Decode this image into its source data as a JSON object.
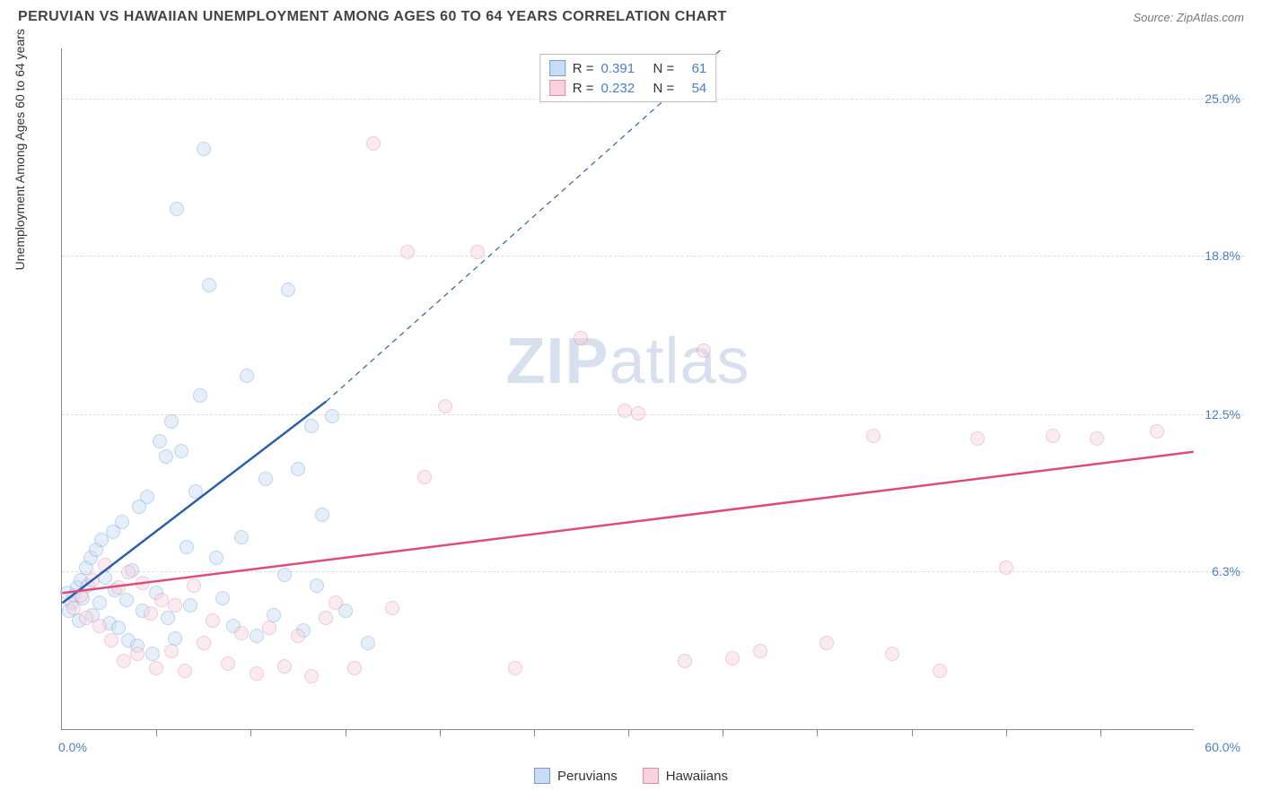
{
  "header": {
    "title": "PERUVIAN VS HAWAIIAN UNEMPLOYMENT AMONG AGES 60 TO 64 YEARS CORRELATION CHART",
    "source_prefix": "Source: ",
    "source": "ZipAtlas.com"
  },
  "chart": {
    "type": "scatter",
    "ylabel": "Unemployment Among Ages 60 to 64 years",
    "xlim": [
      0,
      60
    ],
    "ylim": [
      0,
      27
    ],
    "xticks_minor": [
      5,
      10,
      15,
      20,
      25,
      30,
      35,
      40,
      45,
      50,
      55
    ],
    "xlabels": [
      {
        "v": 0,
        "t": "0.0%"
      },
      {
        "v": 60,
        "t": "60.0%"
      }
    ],
    "ygrid": [
      {
        "v": 6.3,
        "t": "6.3%"
      },
      {
        "v": 12.5,
        "t": "12.5%"
      },
      {
        "v": 18.8,
        "t": "18.8%"
      },
      {
        "v": 25.0,
        "t": "25.0%"
      }
    ],
    "tick_color_blue": "#4a7ec9",
    "background": "#ffffff",
    "grid_color": "#dddddd",
    "axis_color": "#888888",
    "marker_radius": 8,
    "marker_opacity": 0.45,
    "watermark_zip": "ZIP",
    "watermark_rest": "atlas",
    "legend_top": [
      {
        "swatch_fill": "#c8ddf3",
        "swatch_stroke": "#6d9fda",
        "r_label": "R =",
        "r": "0.391",
        "n_label": "N =",
        "n": "61"
      },
      {
        "swatch_fill": "#f6d3de",
        "swatch_stroke": "#e28aa4",
        "r_label": "R =",
        "r": "0.232",
        "n_label": "N =",
        "n": "54"
      }
    ],
    "legend_bottom": [
      {
        "label": "Peruvians",
        "fill": "#c8ddf3",
        "stroke": "#6d9fda"
      },
      {
        "label": "Hawaiians",
        "fill": "#f6d3de",
        "stroke": "#e28aa4"
      }
    ],
    "series": [
      {
        "name": "Peruvians",
        "fill": "#c8ddf3",
        "stroke": "#6d9fda",
        "trend": {
          "x1": 0,
          "y1": 5.0,
          "x2": 14,
          "y2": 13.0,
          "dash_to_x": 35,
          "dash_to_y": 27,
          "color": "#2c5fa6",
          "width": 2.5
        },
        "points": [
          [
            0.5,
            5.0
          ],
          [
            0.6,
            5.3
          ],
          [
            0.8,
            5.6
          ],
          [
            1.0,
            5.9
          ],
          [
            1.1,
            5.2
          ],
          [
            1.3,
            6.4
          ],
          [
            1.4,
            5.7
          ],
          [
            1.5,
            6.8
          ],
          [
            1.6,
            4.5
          ],
          [
            1.8,
            7.1
          ],
          [
            2.0,
            5.0
          ],
          [
            2.1,
            7.5
          ],
          [
            2.3,
            6.0
          ],
          [
            2.5,
            4.2
          ],
          [
            2.7,
            7.8
          ],
          [
            2.8,
            5.5
          ],
          [
            3.0,
            4.0
          ],
          [
            3.2,
            8.2
          ],
          [
            3.4,
            5.1
          ],
          [
            3.5,
            3.5
          ],
          [
            3.7,
            6.3
          ],
          [
            4.0,
            3.3
          ],
          [
            4.1,
            8.8
          ],
          [
            4.3,
            4.7
          ],
          [
            4.5,
            9.2
          ],
          [
            4.8,
            3.0
          ],
          [
            5.0,
            5.4
          ],
          [
            5.2,
            11.4
          ],
          [
            5.5,
            10.8
          ],
          [
            5.6,
            4.4
          ],
          [
            5.8,
            12.2
          ],
          [
            6.0,
            3.6
          ],
          [
            6.1,
            20.6
          ],
          [
            6.3,
            11.0
          ],
          [
            6.6,
            7.2
          ],
          [
            6.8,
            4.9
          ],
          [
            7.1,
            9.4
          ],
          [
            7.3,
            13.2
          ],
          [
            7.5,
            23.0
          ],
          [
            7.8,
            17.6
          ],
          [
            8.2,
            6.8
          ],
          [
            8.5,
            5.2
          ],
          [
            9.1,
            4.1
          ],
          [
            9.5,
            7.6
          ],
          [
            9.8,
            14.0
          ],
          [
            10.3,
            3.7
          ],
          [
            10.8,
            9.9
          ],
          [
            11.2,
            4.5
          ],
          [
            11.8,
            6.1
          ],
          [
            12.0,
            17.4
          ],
          [
            12.5,
            10.3
          ],
          [
            12.8,
            3.9
          ],
          [
            13.2,
            12.0
          ],
          [
            13.5,
            5.7
          ],
          [
            13.8,
            8.5
          ],
          [
            14.3,
            12.4
          ],
          [
            15.0,
            4.7
          ],
          [
            16.2,
            3.4
          ],
          [
            0.4,
            4.7
          ],
          [
            0.3,
            5.4
          ],
          [
            0.9,
            4.3
          ]
        ]
      },
      {
        "name": "Hawaiians",
        "fill": "#f6d3de",
        "stroke": "#e28aa4",
        "trend": {
          "x1": 0,
          "y1": 5.4,
          "x2": 60,
          "y2": 11.0,
          "color": "#dd4c7a",
          "width": 2.5
        },
        "points": [
          [
            0.6,
            4.8
          ],
          [
            1.0,
            5.3
          ],
          [
            1.3,
            4.4
          ],
          [
            1.6,
            5.9
          ],
          [
            2.0,
            4.1
          ],
          [
            2.3,
            6.5
          ],
          [
            2.6,
            3.5
          ],
          [
            3.0,
            5.6
          ],
          [
            3.3,
            2.7
          ],
          [
            3.5,
            6.2
          ],
          [
            4.0,
            3.0
          ],
          [
            4.3,
            5.8
          ],
          [
            4.7,
            4.6
          ],
          [
            5.0,
            2.4
          ],
          [
            5.3,
            5.1
          ],
          [
            5.8,
            3.1
          ],
          [
            6.0,
            4.9
          ],
          [
            6.5,
            2.3
          ],
          [
            7.0,
            5.7
          ],
          [
            7.5,
            3.4
          ],
          [
            8.0,
            4.3
          ],
          [
            8.8,
            2.6
          ],
          [
            9.5,
            3.8
          ],
          [
            10.3,
            2.2
          ],
          [
            11.0,
            4.0
          ],
          [
            11.8,
            2.5
          ],
          [
            12.5,
            3.7
          ],
          [
            13.2,
            2.1
          ],
          [
            14.0,
            4.4
          ],
          [
            14.5,
            5.0
          ],
          [
            15.5,
            2.4
          ],
          [
            16.5,
            23.2
          ],
          [
            17.5,
            4.8
          ],
          [
            18.3,
            18.9
          ],
          [
            19.2,
            10.0
          ],
          [
            20.3,
            12.8
          ],
          [
            22.0,
            18.9
          ],
          [
            24.0,
            2.4
          ],
          [
            27.5,
            15.5
          ],
          [
            29.8,
            12.6
          ],
          [
            30.5,
            12.5
          ],
          [
            33.0,
            2.7
          ],
          [
            34.0,
            15.0
          ],
          [
            35.5,
            2.8
          ],
          [
            37.0,
            3.1
          ],
          [
            40.5,
            3.4
          ],
          [
            43.0,
            11.6
          ],
          [
            44.0,
            3.0
          ],
          [
            46.5,
            2.3
          ],
          [
            48.5,
            11.5
          ],
          [
            50.0,
            6.4
          ],
          [
            52.5,
            11.6
          ],
          [
            54.8,
            11.5
          ],
          [
            58.0,
            11.8
          ]
        ]
      }
    ]
  }
}
